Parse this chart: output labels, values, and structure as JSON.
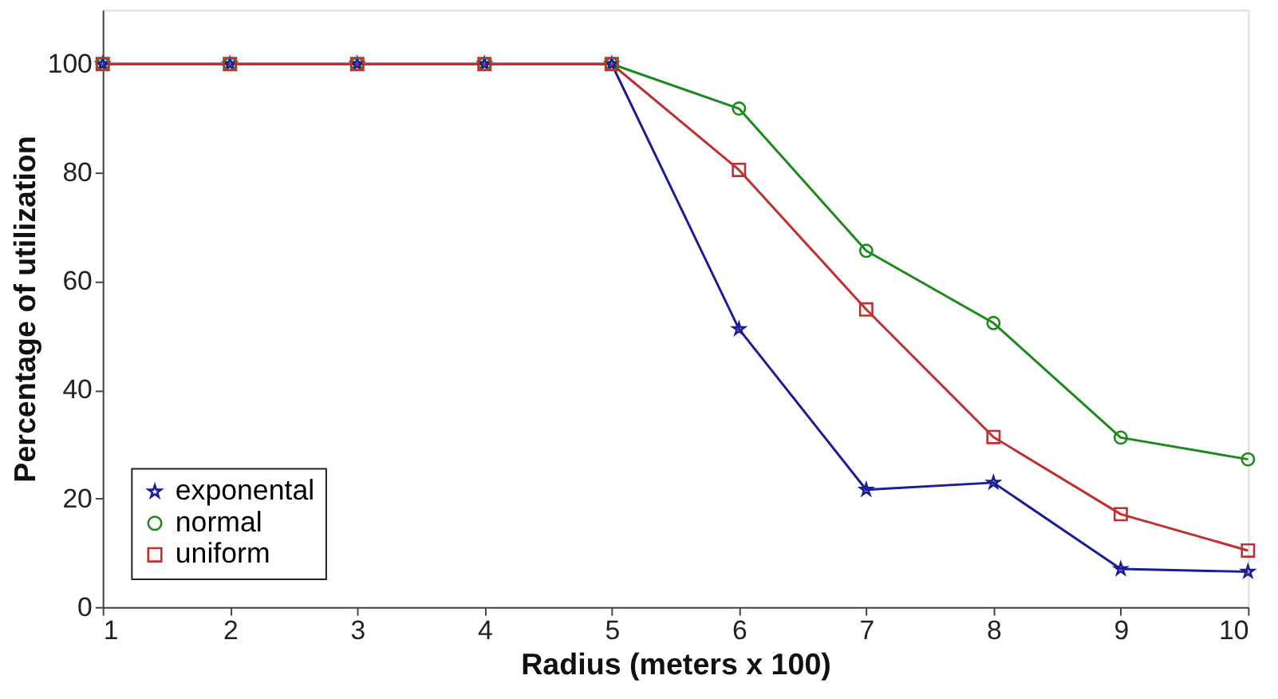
{
  "chart_data": {
    "type": "line",
    "xlabel": "Radius (meters x 100)",
    "ylabel": "Percentage of utilization",
    "x": [
      1,
      2,
      3,
      4,
      5,
      6,
      7,
      8,
      9,
      10
    ],
    "series": [
      {
        "name": "exponental",
        "color": "#1c1c96",
        "marker": "star",
        "values": [
          100,
          100,
          100,
          100,
          100,
          51.2,
          21.6,
          22.9,
          7.0,
          6.5
        ]
      },
      {
        "name": "normal",
        "color": "#1a8a1a",
        "marker": "circle",
        "values": [
          100,
          100,
          100,
          100,
          100,
          91.8,
          65.6,
          52.3,
          31.2,
          27.2
        ]
      },
      {
        "name": "uniform",
        "color": "#c0302e",
        "marker": "square",
        "values": [
          100,
          100,
          100,
          100,
          100,
          80.5,
          54.8,
          31.3,
          17.1,
          10.4
        ]
      }
    ],
    "xlim": [
      1,
      10
    ],
    "xticks": [
      1,
      2,
      3,
      4,
      5,
      6,
      7,
      8,
      9,
      10
    ],
    "ylim": [
      0,
      110
    ],
    "yticks": [
      0,
      20,
      40,
      60,
      80,
      100
    ],
    "grid": false,
    "legend": "bottom left",
    "line_style": "solid"
  }
}
